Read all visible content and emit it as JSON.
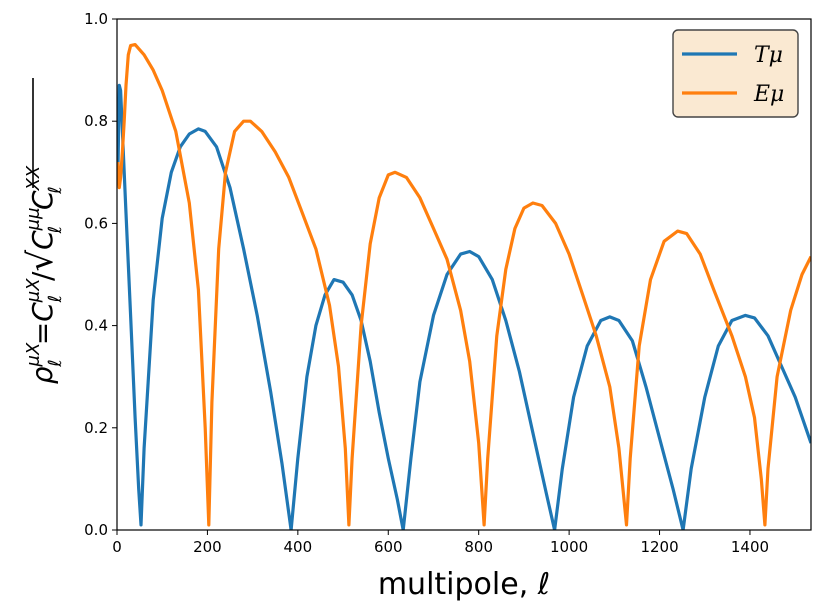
{
  "chart_data": {
    "type": "line",
    "title": "",
    "xlabel": "multipole, ℓ",
    "ylabel": "ρ_ℓ^{μX} = C_ℓ^{μX}/√(C_ℓ^{μμ} C_ℓ^{XX})",
    "ylabel_parts": {
      "base": "ρ",
      "base_sub": "ℓ",
      "base_sup": "μX",
      "eq": "=",
      "num": "C",
      "num_sub": "ℓ",
      "num_sup": "μX",
      "slash": "/",
      "d1": "C",
      "d1_sub": "ℓ",
      "d1_sup": "μμ",
      "d2": "C",
      "d2_sub": "ℓ",
      "d2_sup": "XX"
    },
    "xlim": [
      0,
      1535
    ],
    "ylim": [
      0,
      1.0
    ],
    "xticks": [
      "0",
      "200",
      "400",
      "600",
      "800",
      "1000",
      "1200",
      "1400"
    ],
    "xtick_values": [
      0,
      200,
      400,
      600,
      800,
      1000,
      1200,
      1400
    ],
    "yticks": [
      "0.0",
      "0.2",
      "0.4",
      "0.6",
      "0.8",
      "1.0"
    ],
    "ytick_values": [
      0,
      0.2,
      0.4,
      0.6,
      0.8,
      1.0
    ],
    "grid": false,
    "legend_position": "top-right",
    "series": [
      {
        "name": "Tμ",
        "color": "#1f77b4",
        "points": [
          [
            2,
            0.7
          ],
          [
            5,
            0.87
          ],
          [
            8,
            0.86
          ],
          [
            12,
            0.78
          ],
          [
            20,
            0.62
          ],
          [
            30,
            0.42
          ],
          [
            40,
            0.22
          ],
          [
            48,
            0.08
          ],
          [
            53,
            0.01
          ],
          [
            60,
            0.16
          ],
          [
            80,
            0.45
          ],
          [
            100,
            0.61
          ],
          [
            120,
            0.7
          ],
          [
            140,
            0.75
          ],
          [
            160,
            0.775
          ],
          [
            180,
            0.785
          ],
          [
            195,
            0.78
          ],
          [
            220,
            0.75
          ],
          [
            250,
            0.67
          ],
          [
            280,
            0.55
          ],
          [
            310,
            0.42
          ],
          [
            340,
            0.27
          ],
          [
            365,
            0.13
          ],
          [
            385,
            0.0
          ],
          [
            400,
            0.14
          ],
          [
            420,
            0.3
          ],
          [
            440,
            0.4
          ],
          [
            460,
            0.46
          ],
          [
            480,
            0.49
          ],
          [
            500,
            0.485
          ],
          [
            520,
            0.46
          ],
          [
            540,
            0.41
          ],
          [
            560,
            0.33
          ],
          [
            580,
            0.23
          ],
          [
            600,
            0.14
          ],
          [
            620,
            0.06
          ],
          [
            633,
            0.0
          ],
          [
            650,
            0.14
          ],
          [
            670,
            0.29
          ],
          [
            700,
            0.42
          ],
          [
            730,
            0.5
          ],
          [
            760,
            0.54
          ],
          [
            780,
            0.545
          ],
          [
            800,
            0.535
          ],
          [
            830,
            0.49
          ],
          [
            860,
            0.41
          ],
          [
            890,
            0.31
          ],
          [
            920,
            0.19
          ],
          [
            950,
            0.07
          ],
          [
            968,
            0.0
          ],
          [
            985,
            0.12
          ],
          [
            1010,
            0.26
          ],
          [
            1040,
            0.36
          ],
          [
            1070,
            0.41
          ],
          [
            1090,
            0.417
          ],
          [
            1110,
            0.41
          ],
          [
            1140,
            0.37
          ],
          [
            1170,
            0.28
          ],
          [
            1200,
            0.18
          ],
          [
            1230,
            0.08
          ],
          [
            1252,
            0.0
          ],
          [
            1270,
            0.12
          ],
          [
            1300,
            0.26
          ],
          [
            1330,
            0.36
          ],
          [
            1360,
            0.41
          ],
          [
            1390,
            0.42
          ],
          [
            1410,
            0.415
          ],
          [
            1440,
            0.38
          ],
          [
            1470,
            0.32
          ],
          [
            1500,
            0.26
          ],
          [
            1535,
            0.17
          ]
        ]
      },
      {
        "name": "Eμ",
        "color": "#ff7f0e",
        "points": [
          [
            2,
            0.72
          ],
          [
            5,
            0.67
          ],
          [
            8,
            0.69
          ],
          [
            12,
            0.74
          ],
          [
            16,
            0.8
          ],
          [
            20,
            0.87
          ],
          [
            25,
            0.93
          ],
          [
            30,
            0.948
          ],
          [
            40,
            0.95
          ],
          [
            60,
            0.93
          ],
          [
            80,
            0.9
          ],
          [
            100,
            0.86
          ],
          [
            130,
            0.78
          ],
          [
            160,
            0.64
          ],
          [
            180,
            0.47
          ],
          [
            195,
            0.2
          ],
          [
            203,
            0.01
          ],
          [
            210,
            0.25
          ],
          [
            225,
            0.55
          ],
          [
            240,
            0.7
          ],
          [
            260,
            0.78
          ],
          [
            280,
            0.8
          ],
          [
            295,
            0.8
          ],
          [
            320,
            0.78
          ],
          [
            350,
            0.74
          ],
          [
            380,
            0.69
          ],
          [
            410,
            0.62
          ],
          [
            440,
            0.55
          ],
          [
            470,
            0.44
          ],
          [
            490,
            0.32
          ],
          [
            505,
            0.16
          ],
          [
            513,
            0.01
          ],
          [
            520,
            0.14
          ],
          [
            540,
            0.4
          ],
          [
            560,
            0.56
          ],
          [
            580,
            0.65
          ],
          [
            600,
            0.695
          ],
          [
            615,
            0.7
          ],
          [
            640,
            0.69
          ],
          [
            670,
            0.65
          ],
          [
            700,
            0.59
          ],
          [
            730,
            0.53
          ],
          [
            760,
            0.43
          ],
          [
            780,
            0.33
          ],
          [
            800,
            0.17
          ],
          [
            812,
            0.01
          ],
          [
            820,
            0.14
          ],
          [
            840,
            0.38
          ],
          [
            860,
            0.51
          ],
          [
            880,
            0.59
          ],
          [
            900,
            0.63
          ],
          [
            920,
            0.64
          ],
          [
            940,
            0.635
          ],
          [
            970,
            0.6
          ],
          [
            1000,
            0.54
          ],
          [
            1030,
            0.46
          ],
          [
            1060,
            0.38
          ],
          [
            1090,
            0.28
          ],
          [
            1110,
            0.16
          ],
          [
            1127,
            0.01
          ],
          [
            1135,
            0.14
          ],
          [
            1155,
            0.36
          ],
          [
            1180,
            0.49
          ],
          [
            1210,
            0.565
          ],
          [
            1240,
            0.585
          ],
          [
            1260,
            0.58
          ],
          [
            1290,
            0.54
          ],
          [
            1320,
            0.47
          ],
          [
            1360,
            0.38
          ],
          [
            1390,
            0.3
          ],
          [
            1410,
            0.22
          ],
          [
            1425,
            0.1
          ],
          [
            1433,
            0.01
          ],
          [
            1440,
            0.12
          ],
          [
            1460,
            0.3
          ],
          [
            1490,
            0.43
          ],
          [
            1515,
            0.5
          ],
          [
            1535,
            0.535
          ]
        ]
      }
    ]
  }
}
